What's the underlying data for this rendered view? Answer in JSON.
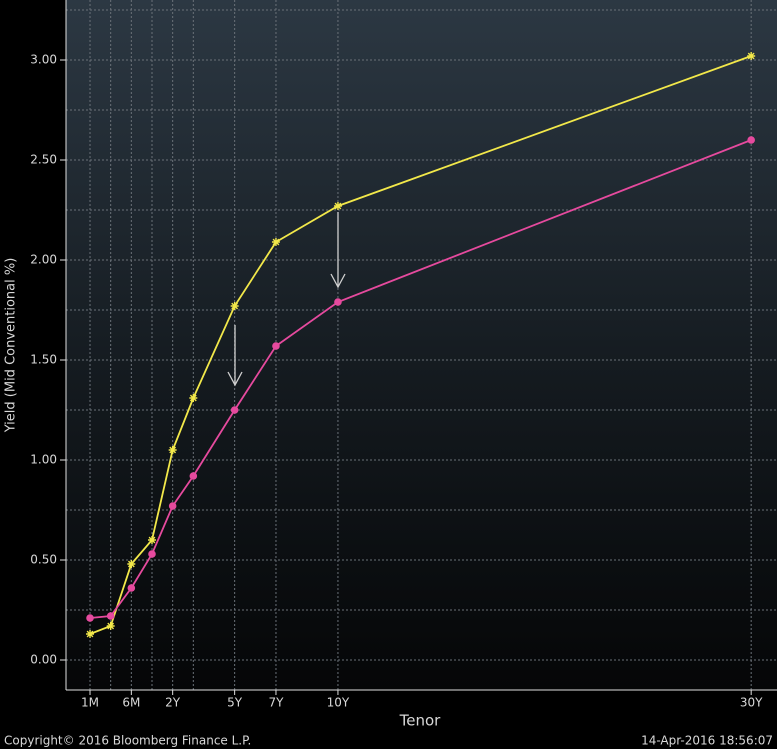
{
  "chart_data": {
    "type": "line",
    "x_label": "Tenor",
    "y_label": "Yield (Mid Conventional %)",
    "footer_left": "Copyright© 2016 Bloomberg Finance L.P.",
    "footer_right": "14-Apr-2016 18:56:07",
    "x": [
      0.0833,
      0.25,
      0.5,
      1,
      2,
      3,
      5,
      7,
      10,
      30
    ],
    "series": [
      {
        "color": "#f2e84a",
        "marker": "star",
        "values": [
          0.13,
          0.17,
          0.48,
          0.6,
          1.05,
          1.31,
          1.77,
          2.09,
          2.27,
          3.02
        ]
      },
      {
        "color": "#e64a9e",
        "marker": "dot",
        "values": [
          0.21,
          0.22,
          0.36,
          0.53,
          0.77,
          0.92,
          1.25,
          1.57,
          1.79,
          2.6
        ]
      }
    ],
    "xlim": [
      0,
      31.25
    ],
    "xticks": [
      {
        "value": 0.0833,
        "label": "1M"
      },
      {
        "value": 0.5,
        "label": "6M"
      },
      {
        "value": 2,
        "label": "2Y"
      },
      {
        "value": 5,
        "label": "5Y"
      },
      {
        "value": 7,
        "label": "7Y"
      },
      {
        "value": 10,
        "label": "10Y"
      },
      {
        "value": 30,
        "label": "30Y"
      }
    ],
    "ylim": [
      -0.15,
      3.3
    ],
    "yticks": [
      {
        "value": 0,
        "label": "0.00"
      },
      {
        "value": 0.5,
        "label": "0.50"
      },
      {
        "value": 1,
        "label": "1.00"
      },
      {
        "value": 1.5,
        "label": "1.50"
      },
      {
        "value": 2,
        "label": "2.00"
      },
      {
        "value": 2.5,
        "label": "2.50"
      },
      {
        "value": 3,
        "label": "3.00"
      }
    ],
    "yminorticks": [
      0.25,
      0.75,
      1.25,
      1.75,
      2.25,
      2.75,
      3.25
    ],
    "grid": true
  }
}
